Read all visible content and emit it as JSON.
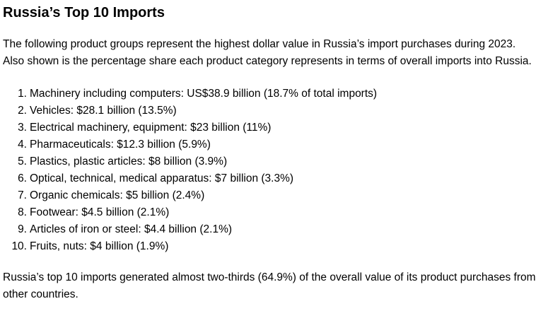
{
  "title": "Russia’s Top 10 Imports",
  "intro": "The following product groups represent the highest dollar value in Russia’s import purchases during 2023. Also shown is the percentage share each product category represents in terms of overall imports into Russia.",
  "list": [
    {
      "num": "1.",
      "text": "Machinery including computers: US$38.9 billion (18.7% of total imports)"
    },
    {
      "num": "2.",
      "text": "Vehicles: $28.1 billion (13.5%)"
    },
    {
      "num": "3.",
      "text": "Electrical machinery, equipment: $23 billion (11%)"
    },
    {
      "num": "4.",
      "text": "Pharmaceuticals: $12.3 billion (5.9%)"
    },
    {
      "num": "5.",
      "text": "Plastics, plastic articles: $8 billion (3.9%)"
    },
    {
      "num": "6.",
      "text": "Optical, technical, medical apparatus: $7 billion (3.3%)"
    },
    {
      "num": "7.",
      "text": "Organic chemicals: $5 billion (2.4%)"
    },
    {
      "num": "8.",
      "text": "Footwear: $4.5 billion (2.1%)"
    },
    {
      "num": "9.",
      "text": "Articles of iron or steel: $4.4 billion (2.1%)"
    },
    {
      "num": "10.",
      "text": "Fruits, nuts: $4 billion (1.9%)"
    }
  ],
  "summary": "Russia’s top 10 imports generated almost two-thirds (64.9%) of the overall value of its product purchases from other countries."
}
